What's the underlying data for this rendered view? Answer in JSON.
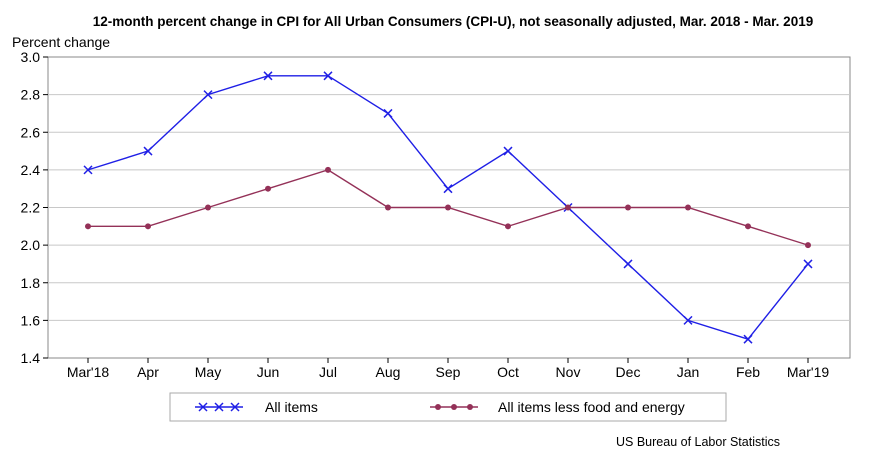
{
  "chart_data": {
    "type": "line",
    "title": "12-month percent change in CPI for All Urban Consumers (CPI-U), not seasonally adjusted, Mar. 2018 - Mar. 2019",
    "ylabel": "Percent change",
    "xlabel": "",
    "categories": [
      "Mar'18",
      "Apr",
      "May",
      "Jun",
      "Jul",
      "Aug",
      "Sep",
      "Oct",
      "Nov",
      "Dec",
      "Jan",
      "Feb",
      "Mar'19"
    ],
    "ylim": [
      1.4,
      3.0
    ],
    "yticks": [
      "1.4",
      "1.6",
      "1.8",
      "2.0",
      "2.2",
      "2.4",
      "2.6",
      "2.8",
      "3.0"
    ],
    "grid": true,
    "legend_position": "bottom",
    "series": [
      {
        "name": "All items",
        "color": "#1f1fe6",
        "marker": "x",
        "values": [
          2.4,
          2.5,
          2.8,
          2.9,
          2.9,
          2.7,
          2.3,
          2.5,
          2.2,
          1.9,
          1.6,
          1.5,
          1.9
        ]
      },
      {
        "name": "All items less food and energy",
        "color": "#943158",
        "marker": "dot",
        "values": [
          2.1,
          2.1,
          2.2,
          2.3,
          2.4,
          2.2,
          2.2,
          2.1,
          2.2,
          2.2,
          2.2,
          2.1,
          2.0
        ]
      }
    ],
    "source": "US Bureau of Labor Statistics"
  }
}
